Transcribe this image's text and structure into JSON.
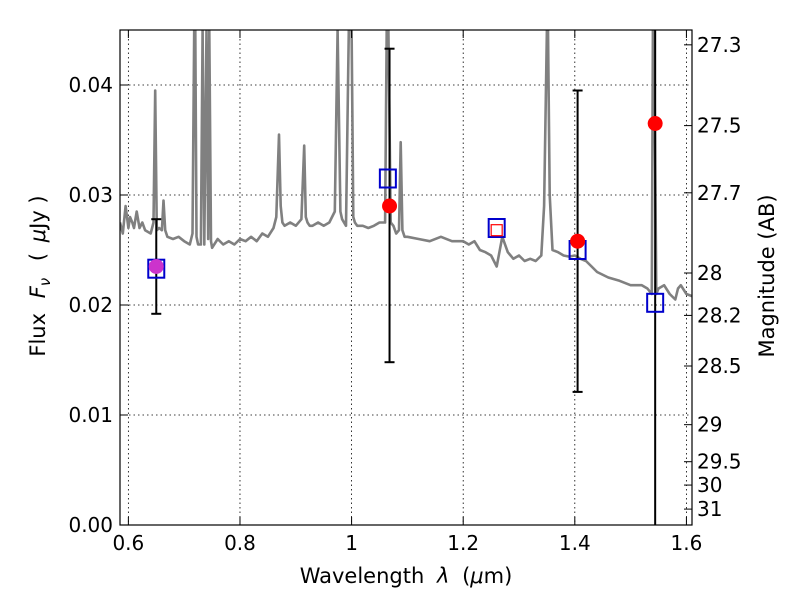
{
  "chart_data": {
    "type": "scatter",
    "xlabel_text": "Wavelength",
    "xlabel_symbol": "λ",
    "xlabel_unit_open": "(",
    "xlabel_unit_mu": "μ",
    "xlabel_unit_rest": "m)",
    "ylabel_text": "Flux",
    "ylabel_symbol": "F",
    "ylabel_sub": "ν",
    "ylabel_unit_open": "(",
    "ylabel_unit_mu": "μ",
    "ylabel_unit_rest": "Jy )",
    "y2label": "Magnitude (AB)",
    "xlim": [
      0.585,
      1.61
    ],
    "ylim": [
      0.0,
      0.045
    ],
    "grid": true,
    "x_ticks": [
      {
        "v": 0.6,
        "label": "0.6"
      },
      {
        "v": 0.8,
        "label": "0.8"
      },
      {
        "v": 1.0,
        "label": "1"
      },
      {
        "v": 1.2,
        "label": "1.2"
      },
      {
        "v": 1.4,
        "label": "1.4"
      },
      {
        "v": 1.6,
        "label": "1.6"
      }
    ],
    "y_ticks": [
      {
        "v": 0.0,
        "label": "0.00"
      },
      {
        "v": 0.01,
        "label": "0.01"
      },
      {
        "v": 0.02,
        "label": "0.02"
      },
      {
        "v": 0.03,
        "label": "0.03"
      },
      {
        "v": 0.04,
        "label": "0.04"
      }
    ],
    "mag_ticks": [
      {
        "m": 27.3,
        "label": "27.3"
      },
      {
        "m": 27.5,
        "label": "27.5"
      },
      {
        "m": 27.7,
        "label": "27.7"
      },
      {
        "m": 28,
        "label": "28"
      },
      {
        "m": 28.2,
        "label": "28.2"
      },
      {
        "m": 28.5,
        "label": "28.5"
      },
      {
        "m": 29,
        "label": "29"
      },
      {
        "m": 29.5,
        "label": "29.5"
      },
      {
        "m": 30,
        "label": "30"
      },
      {
        "m": 31,
        "label": "31"
      }
    ],
    "model_spectrum": {
      "color": "#808080",
      "x": [
        0.585,
        0.59,
        0.595,
        0.6,
        0.603,
        0.607,
        0.61,
        0.615,
        0.62,
        0.625,
        0.63,
        0.64,
        0.645,
        0.648,
        0.651,
        0.655,
        0.66,
        0.663,
        0.666,
        0.67,
        0.68,
        0.69,
        0.7,
        0.71,
        0.715,
        0.718,
        0.72,
        0.722,
        0.725,
        0.73,
        0.733,
        0.736,
        0.74,
        0.743,
        0.745,
        0.748,
        0.75,
        0.76,
        0.77,
        0.78,
        0.79,
        0.8,
        0.81,
        0.82,
        0.83,
        0.84,
        0.85,
        0.86,
        0.865,
        0.87,
        0.873,
        0.876,
        0.88,
        0.89,
        0.9,
        0.91,
        0.915,
        0.918,
        0.921,
        0.925,
        0.93,
        0.94,
        0.95,
        0.96,
        0.97,
        0.975,
        0.98,
        0.983,
        0.99,
        0.995,
        1.0,
        1.003,
        1.006,
        1.01,
        1.02,
        1.03,
        1.04,
        1.05,
        1.06,
        1.063,
        1.066,
        1.07,
        1.075,
        1.08,
        1.085,
        1.088,
        1.091,
        1.095,
        1.1,
        1.12,
        1.14,
        1.16,
        1.18,
        1.2,
        1.21,
        1.22,
        1.23,
        1.24,
        1.25,
        1.26,
        1.27,
        1.28,
        1.285,
        1.29,
        1.3,
        1.31,
        1.32,
        1.33,
        1.34,
        1.345,
        1.35,
        1.352,
        1.355,
        1.36,
        1.37,
        1.38,
        1.39,
        1.4,
        1.41,
        1.42,
        1.43,
        1.44,
        1.46,
        1.48,
        1.5,
        1.52,
        1.53,
        1.538,
        1.54,
        1.542,
        1.546,
        1.55,
        1.56,
        1.57,
        1.58,
        1.585,
        1.59,
        1.6,
        1.61
      ],
      "y": [
        0.0275,
        0.0265,
        0.029,
        0.027,
        0.028,
        0.0275,
        0.027,
        0.0285,
        0.027,
        0.0275,
        0.0268,
        0.0265,
        0.0275,
        0.0395,
        0.0268,
        0.027,
        0.0268,
        0.0295,
        0.0268,
        0.0262,
        0.026,
        0.0262,
        0.0258,
        0.0255,
        0.0265,
        0.045,
        0.045,
        0.0262,
        0.0255,
        0.0255,
        0.045,
        0.0255,
        0.045,
        0.026,
        0.045,
        0.0258,
        0.0252,
        0.026,
        0.0255,
        0.0258,
        0.0255,
        0.026,
        0.0258,
        0.0262,
        0.0258,
        0.0265,
        0.0262,
        0.027,
        0.028,
        0.0355,
        0.029,
        0.0275,
        0.0272,
        0.0275,
        0.0272,
        0.0278,
        0.0345,
        0.028,
        0.0275,
        0.0272,
        0.0272,
        0.0275,
        0.0272,
        0.0275,
        0.0285,
        0.045,
        0.0285,
        0.0278,
        0.0272,
        0.045,
        0.045,
        0.028,
        0.0275,
        0.0272,
        0.0272,
        0.027,
        0.0272,
        0.0275,
        0.0275,
        0.045,
        0.045,
        0.0275,
        0.0272,
        0.0265,
        0.0268,
        0.0348,
        0.0268,
        0.0262,
        0.0262,
        0.026,
        0.0258,
        0.0262,
        0.0258,
        0.0258,
        0.0255,
        0.0258,
        0.025,
        0.0248,
        0.0245,
        0.0235,
        0.0262,
        0.0248,
        0.0245,
        0.0242,
        0.0245,
        0.024,
        0.0242,
        0.024,
        0.0245,
        0.029,
        0.045,
        0.045,
        0.03,
        0.025,
        0.0248,
        0.0245,
        0.0244,
        0.0245,
        0.0242,
        0.024,
        0.0235,
        0.023,
        0.0225,
        0.0222,
        0.0218,
        0.0218,
        0.0215,
        0.021,
        0.045,
        0.045,
        0.021,
        0.0215,
        0.0218,
        0.021,
        0.0205,
        0.0215,
        0.0218,
        0.021,
        0.0208
      ]
    },
    "observed_points": {
      "color": "#ff0000",
      "points": [
        {
          "x": 0.65,
          "y": 0.0235,
          "yerr_low": 0.0192,
          "yerr_high": 0.0278
        },
        {
          "x": 1.068,
          "y": 0.029,
          "yerr_low": 0.0148,
          "yerr_high": 0.0433
        },
        {
          "x": 1.405,
          "y": 0.0258,
          "yerr_low": 0.0121,
          "yerr_high": 0.0395
        },
        {
          "x": 1.544,
          "y": 0.0365,
          "yerr_low": 0.0,
          "yerr_high": 0.045
        }
      ]
    },
    "model_photometry": {
      "color": "#0000cc",
      "points": [
        {
          "x": 0.65,
          "y": 0.0233
        },
        {
          "x": 1.065,
          "y": 0.0315
        },
        {
          "x": 1.26,
          "y": 0.027
        },
        {
          "x": 1.405,
          "y": 0.025
        },
        {
          "x": 1.544,
          "y": 0.0202
        }
      ]
    },
    "small_red_square": {
      "x": 1.26,
      "y": 0.0268
    },
    "magenta_point": {
      "x": 0.65,
      "y": 0.0235,
      "color": "#cc33cc"
    }
  }
}
